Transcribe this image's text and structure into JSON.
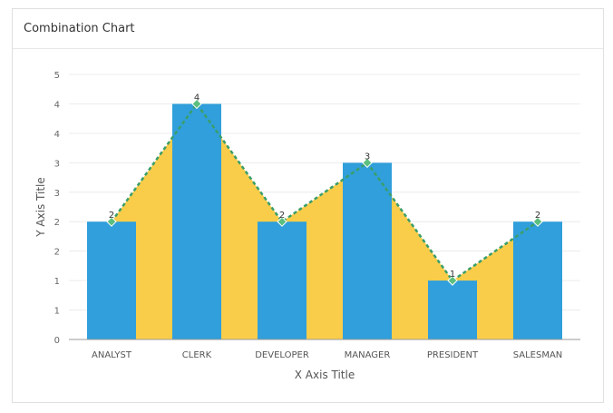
{
  "card": {
    "title": "Combination Chart"
  },
  "chart_data": {
    "type": "bar+area+line",
    "categories": [
      "ANALYST",
      "CLERK",
      "DEVELOPER",
      "MANAGER",
      "PRESIDENT",
      "SALESMAN"
    ],
    "series": [
      {
        "kind": "bar",
        "values": [
          2,
          4,
          2,
          3,
          1,
          2
        ],
        "color": "#309fdb"
      },
      {
        "kind": "area",
        "values": [
          2,
          4,
          2,
          3,
          1,
          2
        ],
        "color": "#f9cd4a"
      },
      {
        "kind": "line",
        "values": [
          2,
          4,
          2,
          3,
          1,
          2
        ],
        "color": "#3a9e6a",
        "style": "dashed",
        "marker": "diamond"
      }
    ],
    "data_labels": [
      "2",
      "4",
      "2",
      "3",
      "1",
      "2"
    ],
    "xlabel": "X Axis Title",
    "ylabel": "Y Axis Title",
    "ylim": [
      0,
      4.5
    ],
    "yticks": [
      0,
      0.5,
      1,
      1.5,
      2,
      2.5,
      3,
      3.5,
      4,
      4.5
    ],
    "ytick_labels": [
      "0",
      "1",
      "1",
      "2",
      "2",
      "3",
      "3",
      "4",
      "4",
      "5"
    ],
    "grid": true
  }
}
